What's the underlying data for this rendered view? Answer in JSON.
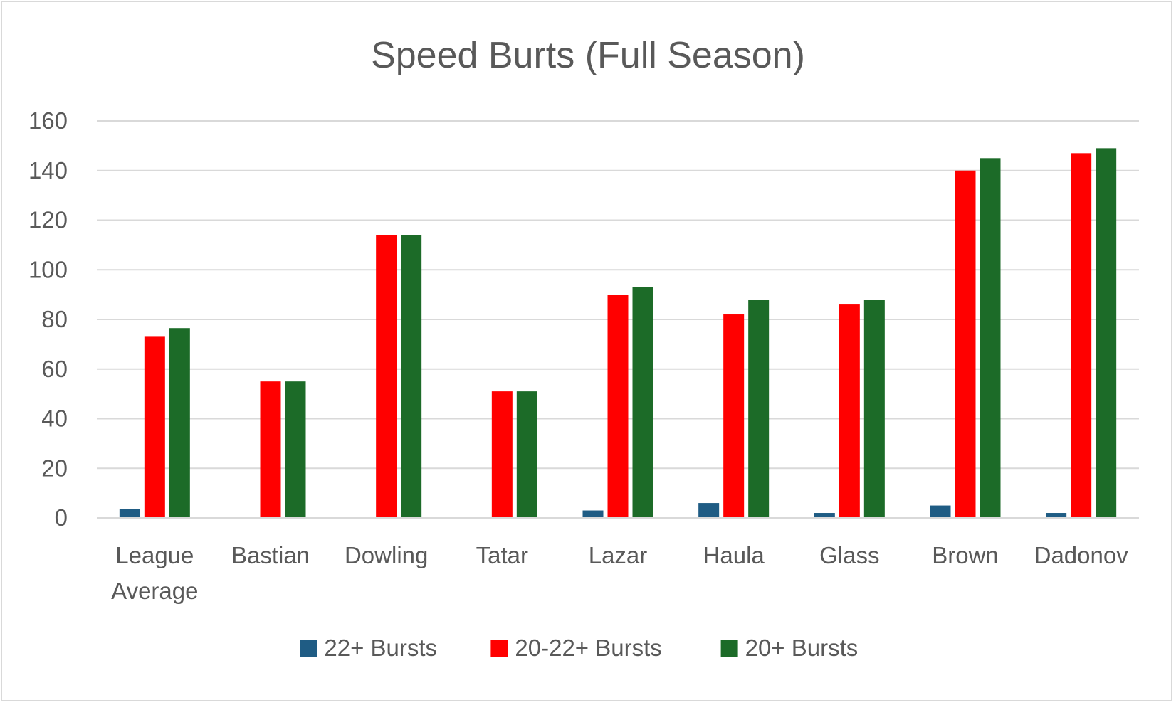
{
  "chart_data": {
    "type": "bar",
    "title": "Speed Burts (Full Season)",
    "categories": [
      [
        "League",
        "Average"
      ],
      [
        "Bastian"
      ],
      [
        "Dowling"
      ],
      [
        "Tatar"
      ],
      [
        "Lazar"
      ],
      [
        "Haula"
      ],
      [
        "Glass"
      ],
      [
        "Brown"
      ],
      [
        "Dadonov"
      ]
    ],
    "series": [
      {
        "name": "22+ Bursts",
        "color": "#1f5c84",
        "values": [
          3.5,
          0,
          0,
          0,
          3,
          6,
          2,
          5,
          2
        ]
      },
      {
        "name": "20-22+ Bursts",
        "color": "#ff0000",
        "values": [
          73,
          55,
          114,
          51,
          90,
          82,
          86,
          140,
          147
        ]
      },
      {
        "name": "20+ Bursts",
        "color": "#1c6b28",
        "values": [
          76.5,
          55,
          114,
          51,
          93,
          88,
          88,
          145,
          149
        ]
      }
    ],
    "ylim": [
      0,
      160
    ],
    "yticks": [
      "0",
      "20",
      "40",
      "60",
      "80",
      "100",
      "120",
      "140",
      "160"
    ],
    "ytick_values": [
      0,
      20,
      40,
      60,
      80,
      100,
      120,
      140,
      160
    ],
    "grid": true,
    "legend_position": "bottom",
    "xlabel": "",
    "ylabel": ""
  }
}
